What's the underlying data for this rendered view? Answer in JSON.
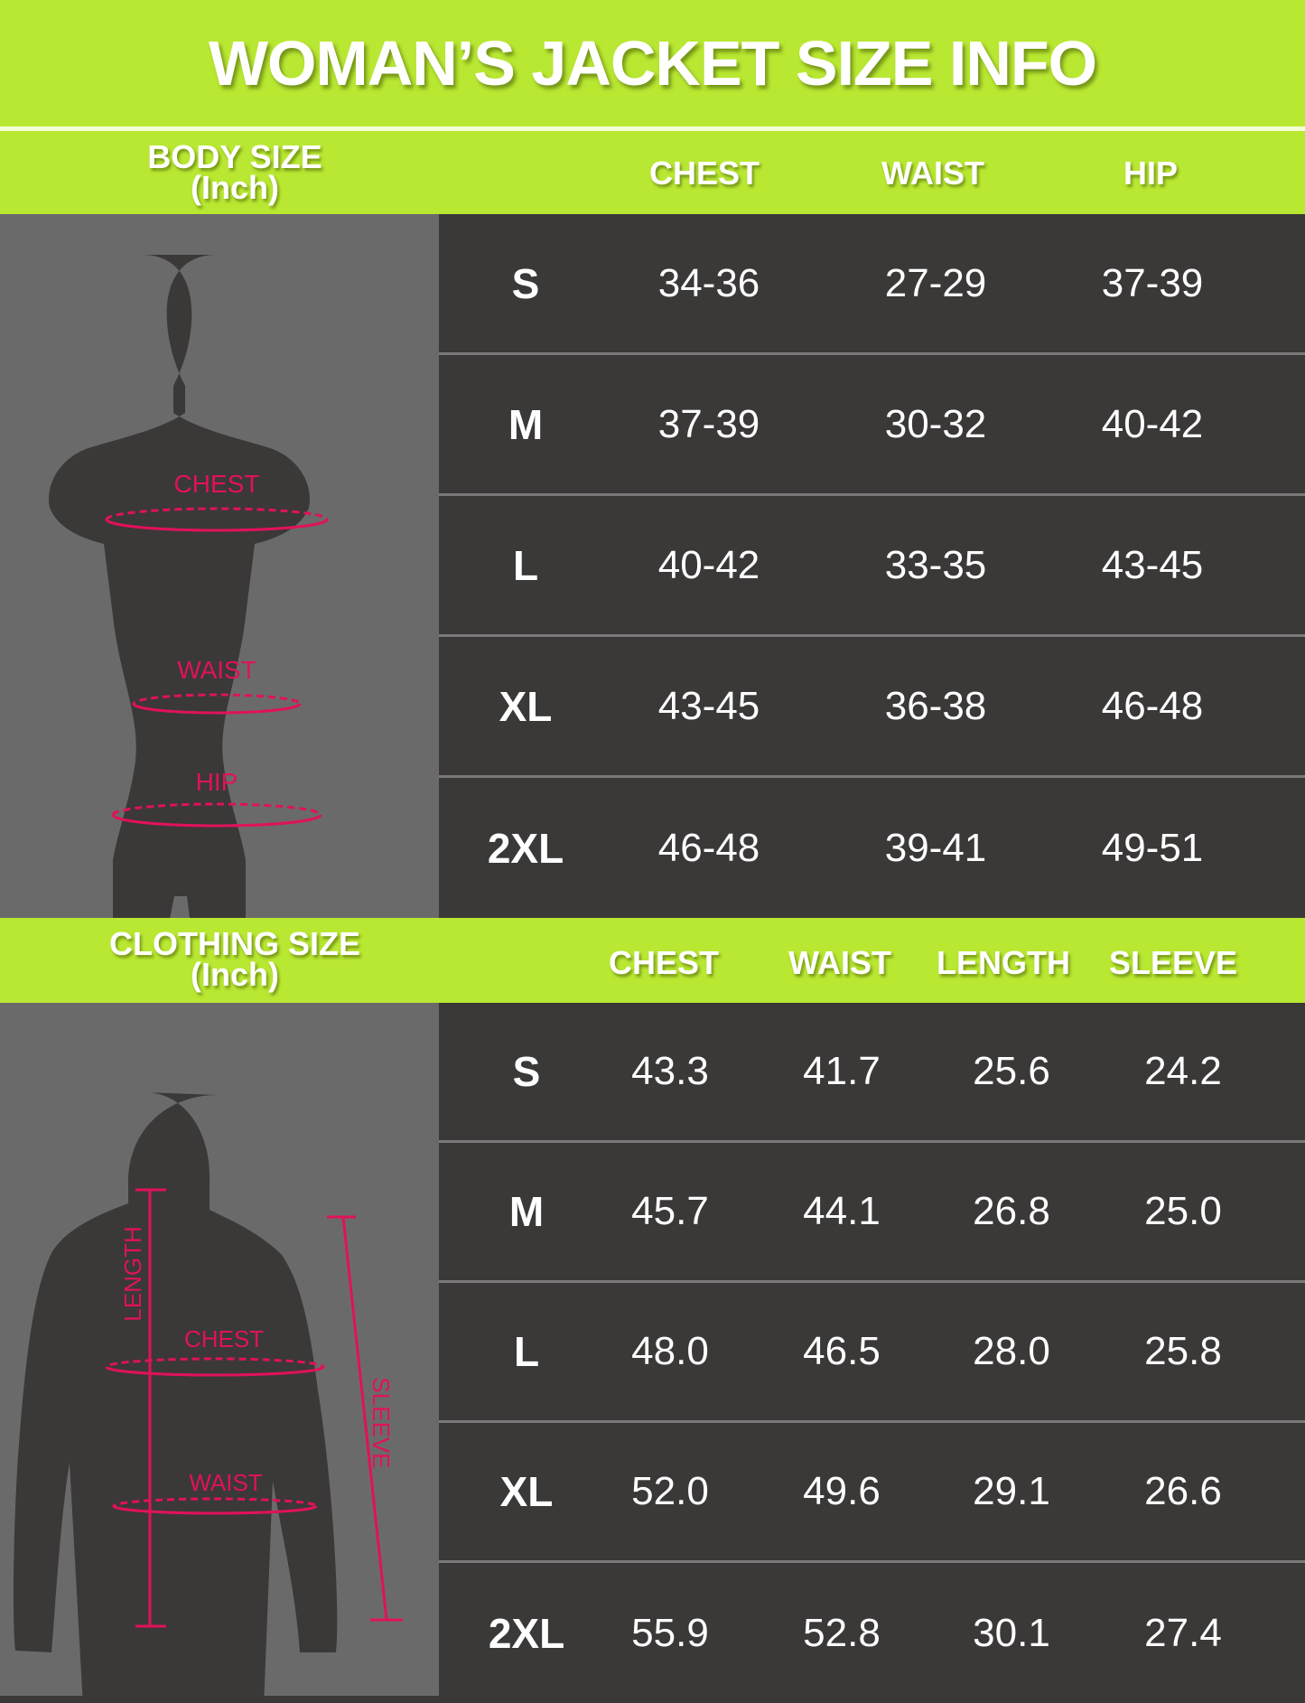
{
  "title": "WOMAN’S JACKET SIZE INFO",
  "colors": {
    "accent": "#b9e832",
    "table_bg": "#3b3838",
    "figure_bg": "#6b6a6b",
    "measure": "#e0125a"
  },
  "body": {
    "label": "BODY SIZE",
    "unit": "(Inch)",
    "columns": [
      "CHEST",
      "WAIST",
      "HIP"
    ],
    "figure_labels": {
      "chest": "CHEST",
      "waist": "WAIST",
      "hip": "HIP"
    },
    "rows": [
      {
        "size": "S",
        "values": [
          "34-36",
          "27-29",
          "37-39"
        ]
      },
      {
        "size": "M",
        "values": [
          "37-39",
          "30-32",
          "40-42"
        ]
      },
      {
        "size": "L",
        "values": [
          "40-42",
          "33-35",
          "43-45"
        ]
      },
      {
        "size": "XL",
        "values": [
          "43-45",
          "36-38",
          "46-48"
        ]
      },
      {
        "size": "2XL",
        "values": [
          "46-48",
          "39-41",
          "49-51"
        ]
      }
    ]
  },
  "clothing": {
    "label": "CLOTHING SIZE",
    "unit": "(Inch)",
    "columns": [
      "CHEST",
      "WAIST",
      "LENGTH",
      "SLEEVE"
    ],
    "figure_labels": {
      "length": "LENGTH",
      "chest": "CHEST",
      "waist": "WAIST",
      "sleeve": "SLEEVE"
    },
    "rows": [
      {
        "size": "S",
        "values": [
          "43.3",
          "41.7",
          "25.6",
          "24.2"
        ]
      },
      {
        "size": "M",
        "values": [
          "45.7",
          "44.1",
          "26.8",
          "25.0"
        ]
      },
      {
        "size": "L",
        "values": [
          "48.0",
          "46.5",
          "28.0",
          "25.8"
        ]
      },
      {
        "size": "XL",
        "values": [
          "52.0",
          "49.6",
          "29.1",
          "26.6"
        ]
      },
      {
        "size": "2XL",
        "values": [
          "55.9",
          "52.8",
          "30.1",
          "27.4"
        ]
      }
    ]
  }
}
